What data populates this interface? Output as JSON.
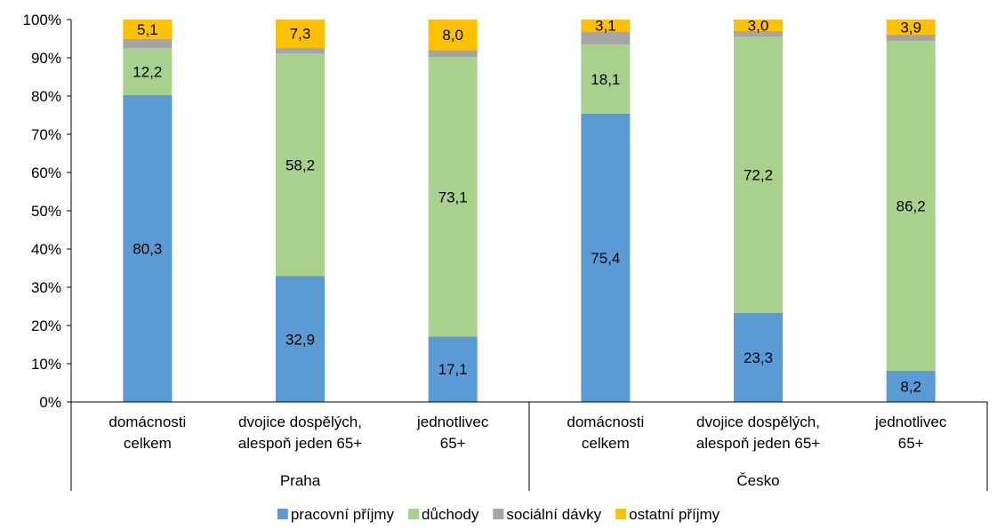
{
  "chart_data": {
    "type": "bar",
    "stacked": true,
    "percent_axis": true,
    "ylim": [
      0,
      100
    ],
    "yticks": [
      "0%",
      "10%",
      "20%",
      "30%",
      "40%",
      "50%",
      "60%",
      "70%",
      "80%",
      "90%",
      "100%"
    ],
    "categories": [
      {
        "lines": [
          "domácnosti",
          "celkem"
        ],
        "group": "Praha"
      },
      {
        "lines": [
          "dvojice dospělých,",
          "alespoň jeden 65+"
        ],
        "group": "Praha"
      },
      {
        "lines": [
          "jednotlivec",
          "65+"
        ],
        "group": "Praha"
      },
      {
        "lines": [
          "domácnosti",
          "celkem"
        ],
        "group": "Česko"
      },
      {
        "lines": [
          "dvojice dospělých,",
          "alespoň jeden 65+"
        ],
        "group": "Česko"
      },
      {
        "lines": [
          "jednotlivec",
          "65+"
        ],
        "group": "Česko"
      }
    ],
    "groups": [
      "Praha",
      "Česko"
    ],
    "series": [
      {
        "name": "pracovní příjmy",
        "color": "#5B9BD5",
        "values": [
          80.3,
          32.9,
          17.1,
          75.4,
          23.3,
          8.2
        ],
        "labels": [
          "80,3",
          "32,9",
          "17,1",
          "75,4",
          "23,3",
          "8,2"
        ]
      },
      {
        "name": "důchody",
        "color": "#A9D18E",
        "values": [
          12.2,
          58.2,
          73.1,
          18.1,
          72.2,
          86.2
        ],
        "labels": [
          "12,2",
          "58,2",
          "73,1",
          "18,1",
          "72,2",
          "86,2"
        ]
      },
      {
        "name": "sociální dávky",
        "color": "#A5A5A5",
        "values": [
          2.4,
          1.6,
          1.8,
          3.4,
          1.5,
          1.7
        ],
        "labels": [
          "",
          "",
          "",
          "",
          "",
          ""
        ]
      },
      {
        "name": "ostatní příjmy",
        "color": "#FFC000",
        "values": [
          5.1,
          7.3,
          8.0,
          3.1,
          3.0,
          3.9
        ],
        "labels": [
          "5,1",
          "7,3",
          "8,0",
          "3,1",
          "3,0",
          "3,9"
        ]
      }
    ],
    "legend_position": "bottom",
    "grid": false
  }
}
